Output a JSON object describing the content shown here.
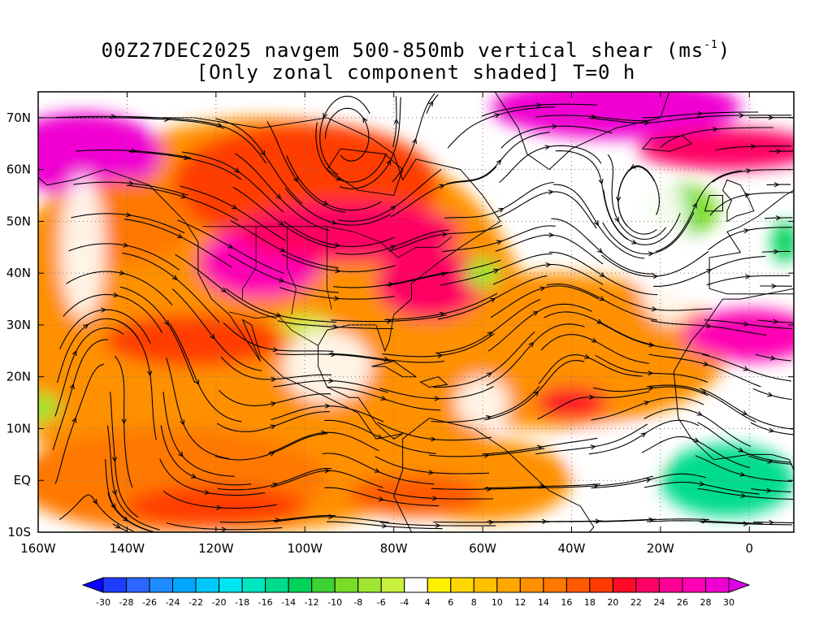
{
  "title": {
    "line1_prefix": "00Z27DEC2025 navgem 500-850mb vertical shear (ms",
    "line1_sup": "-1",
    "line1_suffix": ")",
    "line2": "[Only zonal component shaded] T=0 h"
  },
  "map": {
    "lon_range": [
      -160,
      10
    ],
    "lat_range": [
      -10,
      75
    ],
    "lon_ticks": [
      {
        "value": -160,
        "label": "160W"
      },
      {
        "value": -140,
        "label": "140W"
      },
      {
        "value": -120,
        "label": "120W"
      },
      {
        "value": -100,
        "label": "100W"
      },
      {
        "value": -80,
        "label": "80W"
      },
      {
        "value": -60,
        "label": "60W"
      },
      {
        "value": -40,
        "label": "40W"
      },
      {
        "value": -20,
        "label": "20W"
      },
      {
        "value": 0,
        "label": "0"
      }
    ],
    "lat_ticks": [
      {
        "value": 70,
        "label": "70N"
      },
      {
        "value": 60,
        "label": "60N"
      },
      {
        "value": 50,
        "label": "50N"
      },
      {
        "value": 40,
        "label": "40N"
      },
      {
        "value": 30,
        "label": "30N"
      },
      {
        "value": 20,
        "label": "20N"
      },
      {
        "value": 10,
        "label": "10N"
      },
      {
        "value": 0,
        "label": "EQ"
      },
      {
        "value": -10,
        "label": "10S"
      }
    ],
    "shear_max_regions": [
      {
        "lon": -150,
        "lat": 60,
        "value": 30
      },
      {
        "lon": -108,
        "lat": 43,
        "value": 30
      },
      {
        "lon": -90,
        "lat": 50,
        "value": 26
      },
      {
        "lon": -70,
        "lat": 40,
        "value": 24
      },
      {
        "lon": -25,
        "lat": 72,
        "value": 30
      },
      {
        "lon": 5,
        "lat": 28,
        "value": 28
      },
      {
        "lon": -40,
        "lat": 15,
        "value": 20
      },
      {
        "lon": -130,
        "lat": -5,
        "value": 18
      }
    ],
    "shear_min_regions": [
      {
        "lon": -5,
        "lat": 0,
        "value": -18
      },
      {
        "lon": -15,
        "lat": 52,
        "value": -10
      },
      {
        "lon": 5,
        "lat": 45,
        "value": -14
      }
    ]
  },
  "colorbar": {
    "levels": [
      "-30",
      "-28",
      "-26",
      "-24",
      "-22",
      "-20",
      "-18",
      "-16",
      "-14",
      "-12",
      "-10",
      "-8",
      "-6",
      "-4",
      "4",
      "6",
      "8",
      "10",
      "12",
      "14",
      "16",
      "18",
      "20",
      "22",
      "24",
      "26",
      "28",
      "30"
    ],
    "colors": [
      "#0a00ff",
      "#1e3cff",
      "#2a66ff",
      "#1e8cff",
      "#00a8ff",
      "#00c8ff",
      "#00e6f0",
      "#00e6c0",
      "#00dc8c",
      "#00d25a",
      "#3cd232",
      "#78dc28",
      "#a0e632",
      "#c8f03c",
      "#ffffff",
      "#fff000",
      "#ffd700",
      "#ffc000",
      "#ffa800",
      "#ff9000",
      "#ff7800",
      "#ff5a00",
      "#ff3c00",
      "#ff0a28",
      "#ff0064",
      "#ff0096",
      "#ff00b4",
      "#f000d2",
      "#e000e6"
    ]
  }
}
